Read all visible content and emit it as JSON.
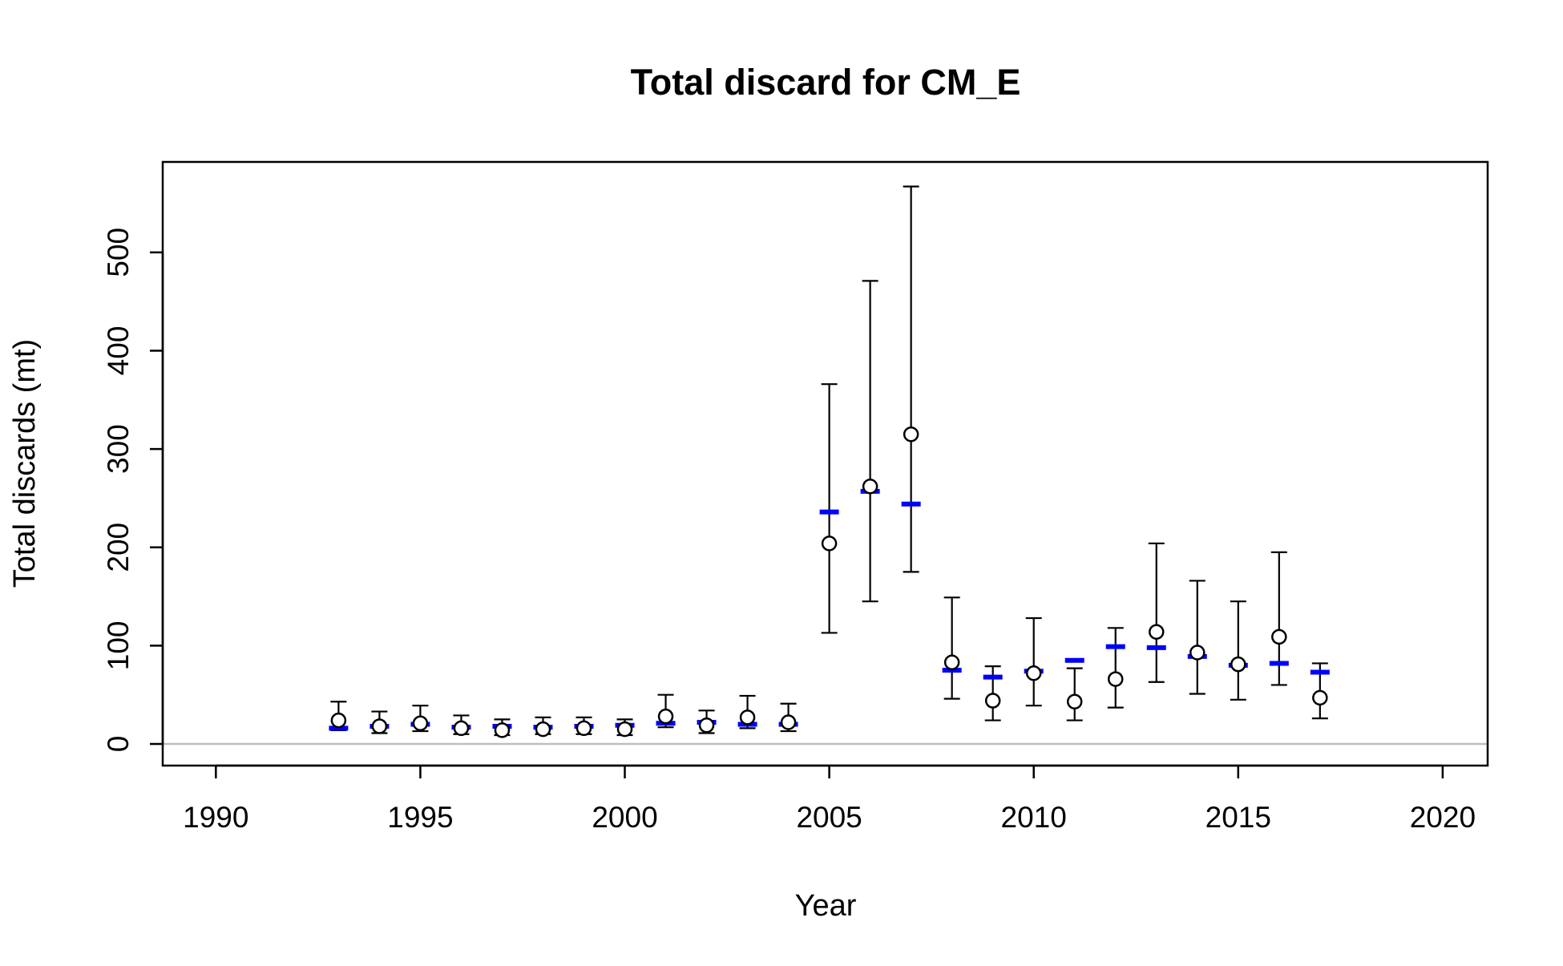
{
  "chart_data": {
    "type": "scatter",
    "title": "Total discard for CM_E",
    "xlabel": "Year",
    "ylabel": "Total discards (mt)",
    "xlim": [
      1988.7,
      2021.1
    ],
    "ylim": [
      -22,
      592
    ],
    "x_ticks": [
      1990,
      1995,
      2000,
      2005,
      2010,
      2015,
      2020
    ],
    "y_ticks": [
      0,
      100,
      200,
      300,
      400,
      500
    ],
    "grid": false,
    "legend": "none",
    "reference_line": {
      "y": 0,
      "color": "#bebebe"
    },
    "observed_color": "#000000",
    "expected_color": "#0000ff",
    "series": [
      {
        "marker": "open-circle-with-error-bars",
        "x": [
          1993,
          1994,
          1995,
          1996,
          1997,
          1998,
          1999,
          2000,
          2001,
          2002,
          2003,
          2004,
          2005,
          2006,
          2007,
          2008,
          2009,
          2010,
          2011,
          2012,
          2013,
          2014,
          2015,
          2016,
          2017
        ],
        "y": [
          24,
          18,
          21,
          16,
          14,
          15,
          16,
          15,
          28,
          19,
          27,
          22,
          204,
          262,
          315,
          83,
          44,
          72,
          43,
          66,
          114,
          93,
          81,
          109,
          47
        ],
        "lower": [
          14,
          11,
          13,
          10,
          9,
          10,
          10,
          9,
          17,
          11,
          16,
          13,
          113,
          145,
          175,
          46,
          24,
          39,
          24,
          37,
          63,
          51,
          45,
          60,
          26
        ],
        "upper": [
          43,
          33,
          39,
          29,
          25,
          27,
          27,
          25,
          50,
          34,
          49,
          41,
          366,
          471,
          567,
          149,
          79,
          128,
          77,
          118,
          204,
          166,
          145,
          195,
          82
        ]
      },
      {
        "marker": "dash",
        "x": [
          1993,
          1994,
          1995,
          1996,
          1997,
          1998,
          1999,
          2000,
          2001,
          2002,
          2003,
          2004,
          2005,
          2006,
          2007,
          2008,
          2009,
          2010,
          2011,
          2012,
          2013,
          2014,
          2015,
          2016,
          2017
        ],
        "y": [
          16,
          18,
          20,
          17,
          18,
          17,
          18,
          19,
          21,
          22,
          20,
          20,
          236,
          257,
          244,
          75,
          68,
          74,
          85,
          99,
          98,
          89,
          80,
          82,
          73
        ]
      }
    ]
  }
}
